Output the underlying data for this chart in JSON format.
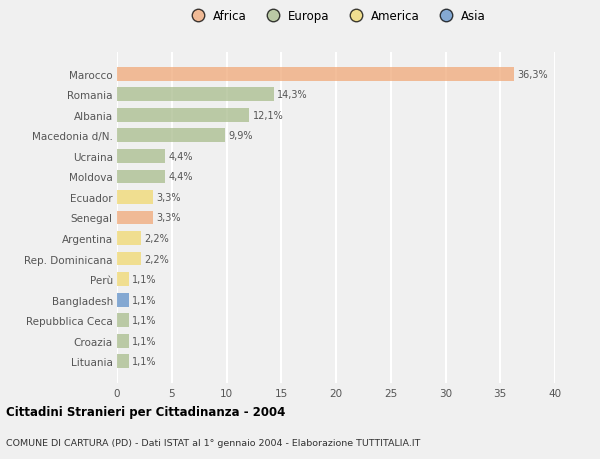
{
  "countries": [
    "Marocco",
    "Romania",
    "Albania",
    "Macedonia d/N.",
    "Ucraina",
    "Moldova",
    "Ecuador",
    "Senegal",
    "Argentina",
    "Rep. Dominicana",
    "Perù",
    "Bangladesh",
    "Repubblica Ceca",
    "Croazia",
    "Lituania"
  ],
  "values": [
    36.3,
    14.3,
    12.1,
    9.9,
    4.4,
    4.4,
    3.3,
    3.3,
    2.2,
    2.2,
    1.1,
    1.1,
    1.1,
    1.1,
    1.1
  ],
  "labels": [
    "36,3%",
    "14,3%",
    "12,1%",
    "9,9%",
    "4,4%",
    "4,4%",
    "3,3%",
    "3,3%",
    "2,2%",
    "2,2%",
    "1,1%",
    "1,1%",
    "1,1%",
    "1,1%",
    "1,1%"
  ],
  "continents": [
    "Africa",
    "Europa",
    "Europa",
    "Europa",
    "Europa",
    "Europa",
    "America",
    "Africa",
    "America",
    "America",
    "America",
    "Asia",
    "Europa",
    "Europa",
    "Europa"
  ],
  "colors": {
    "Africa": "#F0A878",
    "Europa": "#A8BC8C",
    "America": "#F0D870",
    "Asia": "#6090C8"
  },
  "legend_order": [
    "Africa",
    "Europa",
    "America",
    "Asia"
  ],
  "xlim": [
    0,
    40
  ],
  "xticks": [
    0,
    5,
    10,
    15,
    20,
    25,
    30,
    35,
    40
  ],
  "title": "Cittadini Stranieri per Cittadinanza - 2004",
  "subtitle": "COMUNE DI CARTURA (PD) - Dati ISTAT al 1° gennaio 2004 - Elaborazione TUTTITALIA.IT",
  "background_color": "#f0f0f0",
  "grid_color": "#ffffff",
  "bar_alpha": 0.75
}
